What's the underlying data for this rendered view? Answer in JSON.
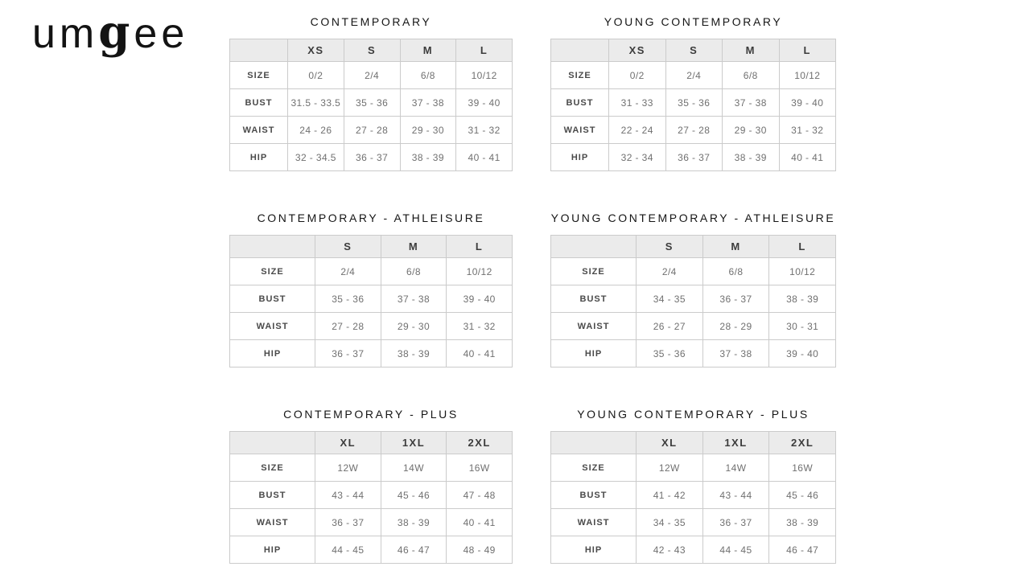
{
  "page": {
    "background": "#ffffff"
  },
  "logo": {
    "text": "umgee",
    "part_um": "um",
    "part_g": "g",
    "part_ee": "ee"
  },
  "colors": {
    "header_bg": "#ebebeb",
    "border": "#cbcbcb",
    "title_text": "#161616",
    "header_text": "#3c3c3c",
    "row_label_text": "#4a4a4a",
    "value_text": "#707070",
    "logo_text": "#131313"
  },
  "tables": [
    {
      "title": "CONTEMPORARY",
      "columns": [
        "XS",
        "S",
        "M",
        "L"
      ],
      "rows": [
        {
          "label": "SIZE",
          "values": [
            "0/2",
            "2/4",
            "6/8",
            "10/12"
          ]
        },
        {
          "label": "BUST",
          "values": [
            "31.5 - 33.5",
            "35 - 36",
            "37 - 38",
            "39 - 40"
          ]
        },
        {
          "label": "WAIST",
          "values": [
            "24 - 26",
            "27 - 28",
            "29 - 30",
            "31 - 32"
          ]
        },
        {
          "label": "HIP",
          "values": [
            "32 - 34.5",
            "36 - 37",
            "38 - 39",
            "40 - 41"
          ]
        }
      ]
    },
    {
      "title": "YOUNG CONTEMPORARY",
      "columns": [
        "XS",
        "S",
        "M",
        "L"
      ],
      "rows": [
        {
          "label": "SIZE",
          "values": [
            "0/2",
            "2/4",
            "6/8",
            "10/12"
          ]
        },
        {
          "label": "BUST",
          "values": [
            "31 - 33",
            "35 - 36",
            "37 - 38",
            "39 - 40"
          ]
        },
        {
          "label": "WAIST",
          "values": [
            "22 - 24",
            "27 - 28",
            "29 - 30",
            "31 - 32"
          ]
        },
        {
          "label": "HIP",
          "values": [
            "32 - 34",
            "36 - 37",
            "38 - 39",
            "40 - 41"
          ]
        }
      ]
    },
    {
      "title": "CONTEMPORARY - ATHLEISURE",
      "columns": [
        "S",
        "M",
        "L"
      ],
      "rows": [
        {
          "label": "SIZE",
          "values": [
            "2/4",
            "6/8",
            "10/12"
          ]
        },
        {
          "label": "BUST",
          "values": [
            "35 - 36",
            "37 - 38",
            "39 - 40"
          ]
        },
        {
          "label": "WAIST",
          "values": [
            "27 - 28",
            "29 - 30",
            "31 - 32"
          ]
        },
        {
          "label": "HIP",
          "values": [
            "36 - 37",
            "38 - 39",
            "40 - 41"
          ]
        }
      ]
    },
    {
      "title": "YOUNG CONTEMPORARY - ATHLEISURE",
      "columns": [
        "S",
        "M",
        "L"
      ],
      "rows": [
        {
          "label": "SIZE",
          "values": [
            "2/4",
            "6/8",
            "10/12"
          ]
        },
        {
          "label": "BUST",
          "values": [
            "34 - 35",
            "36 - 37",
            "38 - 39"
          ]
        },
        {
          "label": "WAIST",
          "values": [
            "26 - 27",
            "28 - 29",
            "30 - 31"
          ]
        },
        {
          "label": "HIP",
          "values": [
            "35 - 36",
            "37 - 38",
            "39 - 40"
          ]
        }
      ]
    },
    {
      "title": "CONTEMPORARY - PLUS",
      "columns": [
        "XL",
        "1XL",
        "2XL"
      ],
      "rows": [
        {
          "label": "SIZE",
          "values": [
            "12W",
            "14W",
            "16W"
          ]
        },
        {
          "label": "BUST",
          "values": [
            "43 - 44",
            "45 - 46",
            "47 - 48"
          ]
        },
        {
          "label": "WAIST",
          "values": [
            "36 - 37",
            "38 - 39",
            "40 - 41"
          ]
        },
        {
          "label": "HIP",
          "values": [
            "44 - 45",
            "46 - 47",
            "48 - 49"
          ]
        }
      ]
    },
    {
      "title": "YOUNG CONTEMPORARY - PLUS",
      "columns": [
        "XL",
        "1XL",
        "2XL"
      ],
      "rows": [
        {
          "label": "SIZE",
          "values": [
            "12W",
            "14W",
            "16W"
          ]
        },
        {
          "label": "BUST",
          "values": [
            "41 - 42",
            "43 - 44",
            "45 - 46"
          ]
        },
        {
          "label": "WAIST",
          "values": [
            "34 - 35",
            "36 - 37",
            "38 - 39"
          ]
        },
        {
          "label": "HIP",
          "values": [
            "42 - 43",
            "44 - 45",
            "46 - 47"
          ]
        }
      ]
    }
  ]
}
